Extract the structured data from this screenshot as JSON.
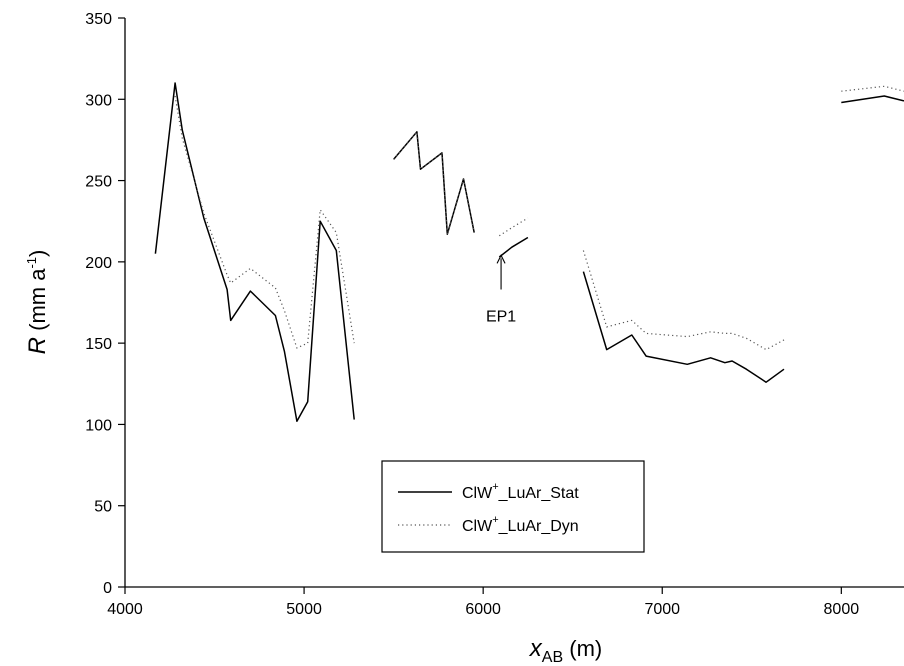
{
  "chart_data": {
    "type": "line",
    "xlim": [
      4000,
      8350
    ],
    "ylim": [
      0,
      350
    ],
    "x_ticks": [
      4000,
      5000,
      6000,
      7000,
      8000
    ],
    "y_ticks": [
      0,
      50,
      100,
      150,
      200,
      250,
      300,
      350
    ],
    "xlabel": {
      "var": "x",
      "sub": "AB",
      "unit": " (m)"
    },
    "ylabel": {
      "var": "R",
      "unit_pre": " (mm a",
      "unit_sup": "-1",
      "unit_post": ")"
    },
    "legend": {
      "position": "bottom-center"
    },
    "series": [
      {
        "name_base": "ClW",
        "name_sup": "+",
        "name_rest": "_LuAr_Stat",
        "style": "solid",
        "color": "#000000",
        "segments": [
          [
            [
              4170,
              205
            ],
            [
              4280,
              310
            ],
            [
              4320,
              281
            ],
            [
              4440,
              227
            ],
            [
              4570,
              183
            ],
            [
              4590,
              164
            ],
            [
              4700,
              182
            ],
            [
              4840,
              167
            ],
            [
              4890,
              145
            ],
            [
              4960,
              102
            ],
            [
              5020,
              114
            ],
            [
              5090,
              225
            ],
            [
              5180,
              207
            ],
            [
              5280,
              103
            ]
          ],
          [
            [
              5500,
              263
            ],
            [
              5630,
              280
            ],
            [
              5650,
              257
            ],
            [
              5770,
              267
            ],
            [
              5800,
              217
            ],
            [
              5890,
              251
            ],
            [
              5950,
              218
            ]
          ],
          [
            [
              6090,
              203
            ],
            [
              6160,
              209
            ],
            [
              6250,
              215
            ]
          ],
          [
            [
              6560,
              194
            ],
            [
              6690,
              146
            ],
            [
              6830,
              155
            ],
            [
              6910,
              142
            ],
            [
              7140,
              137
            ],
            [
              7270,
              141
            ],
            [
              7350,
              138
            ],
            [
              7390,
              139
            ],
            [
              7470,
              134
            ],
            [
              7580,
              126
            ],
            [
              7680,
              134
            ]
          ],
          [
            [
              8000,
              298
            ],
            [
              8240,
              302
            ],
            [
              8350,
              299
            ]
          ]
        ]
      },
      {
        "name_base": "ClW",
        "name_sup": "+",
        "name_rest": "_LuAr_Dyn",
        "style": "dotted",
        "color": "#000000",
        "segments": [
          [
            [
              4280,
              302
            ],
            [
              4320,
              276
            ],
            [
              4440,
              230
            ],
            [
              4570,
              192
            ],
            [
              4590,
              187
            ],
            [
              4700,
              196
            ],
            [
              4840,
              184
            ],
            [
              4890,
              170
            ],
            [
              4960,
              147
            ],
            [
              5020,
              150
            ],
            [
              5090,
              232
            ],
            [
              5180,
              218
            ],
            [
              5280,
              150
            ]
          ],
          [
            [
              5500,
              263
            ],
            [
              5630,
              280
            ],
            [
              5650,
              257
            ],
            [
              5770,
              267
            ],
            [
              5800,
              217
            ],
            [
              5890,
              251
            ],
            [
              5950,
              218
            ]
          ],
          [
            [
              6090,
              216
            ],
            [
              6160,
              221
            ],
            [
              6250,
              227
            ]
          ],
          [
            [
              6560,
              207
            ],
            [
              6690,
              160
            ],
            [
              6830,
              164
            ],
            [
              6910,
              156
            ],
            [
              7140,
              154
            ],
            [
              7270,
              157
            ],
            [
              7350,
              156
            ],
            [
              7390,
              156
            ],
            [
              7470,
              153
            ],
            [
              7580,
              146
            ],
            [
              7680,
              152
            ]
          ],
          [
            [
              8000,
              305
            ],
            [
              8240,
              308
            ],
            [
              8350,
              305
            ]
          ]
        ]
      }
    ],
    "annotations": [
      {
        "text": "EP1",
        "arrow_from": [
          6100,
          183
        ],
        "arrow_to": [
          6100,
          204
        ],
        "text_at": [
          6100,
          167
        ]
      }
    ]
  }
}
